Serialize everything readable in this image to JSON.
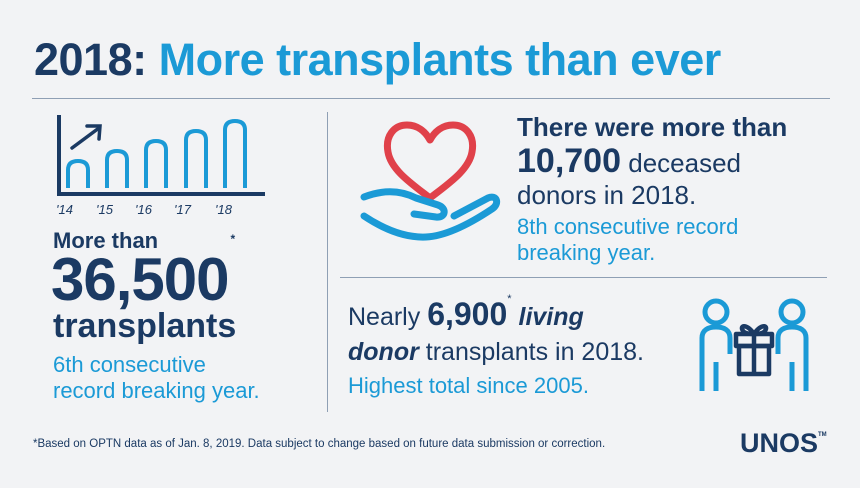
{
  "headline": {
    "year": "2018:",
    "rest": "More transplants than ever"
  },
  "chart_data": {
    "type": "bar",
    "categories": [
      "'14",
      "'15",
      "'16",
      "'17",
      "'18"
    ],
    "values": [
      1,
      2,
      3,
      4,
      5
    ],
    "title": "",
    "xlabel": "",
    "ylabel": ""
  },
  "left": {
    "intro": "More than",
    "number": "36,500",
    "asterisk": "*",
    "word": "transplants",
    "sub_line1": "6th consecutive",
    "sub_line2": "record breaking year."
  },
  "deceased": {
    "line1": "There were more than",
    "number": "10,700",
    "line2_rest": "deceased",
    "line3": "donors in 2018.",
    "sub_line1": "8th consecutive record",
    "sub_line2": "breaking year."
  },
  "living": {
    "prefix": "Nearly ",
    "number": "6,900",
    "asterisk": "*",
    "word1": "living",
    "word2": "donor",
    "line2_rest": " transplants in 2018.",
    "sub": "Highest total since 2005."
  },
  "footnote": "*Based on OPTN data as of Jan. 8, 2019. Data subject to change based on future data submission or correction.",
  "logo": {
    "text": "UNOS",
    "tm": "TM"
  },
  "colors": {
    "navy": "#1b3a63",
    "blue": "#1b9ad6",
    "red": "#e0414a",
    "background": "#f2f3f5"
  }
}
